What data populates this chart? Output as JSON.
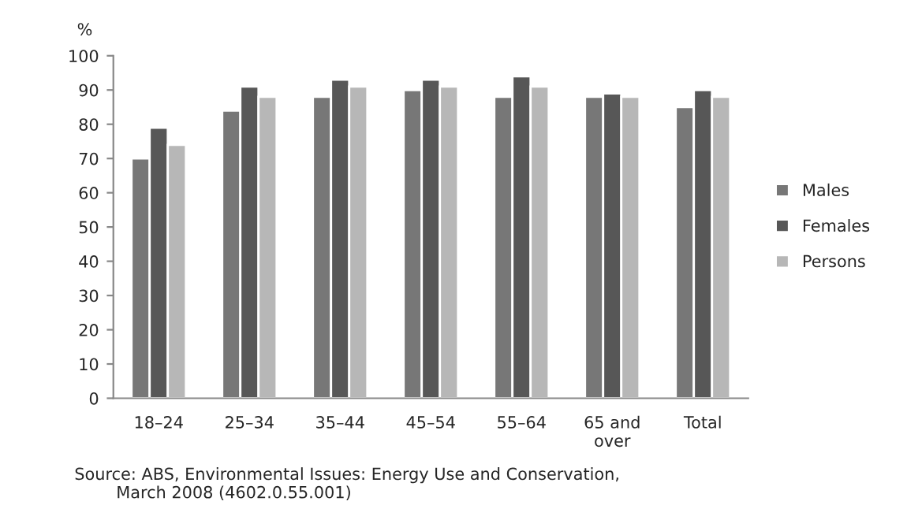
{
  "chart_data": {
    "type": "bar",
    "ylabel": "%",
    "categories": [
      "18–24",
      "25–34",
      "35–44",
      "45–54",
      "55–64",
      "65 and\nover",
      "Total"
    ],
    "series": [
      {
        "name": "Males",
        "color": "#777777",
        "values": [
          70,
          84,
          88,
          90,
          88,
          88,
          85
        ]
      },
      {
        "name": "Females",
        "color": "#575757",
        "values": [
          79,
          91,
          93,
          93,
          94,
          89,
          90
        ]
      },
      {
        "name": "Persons",
        "color": "#b7b7b7",
        "values": [
          74,
          88,
          91,
          91,
          91,
          88,
          88
        ]
      }
    ],
    "ylim": [
      0,
      100
    ],
    "yticks": [
      0,
      10,
      20,
      30,
      40,
      50,
      60,
      70,
      80,
      90,
      100
    ],
    "grid": false,
    "legend": "right",
    "annotations": [
      "Source: ABS, Environmental Issues: Energy Use and Conservation,\n        March 2008 (4602.0.55.001)"
    ]
  }
}
